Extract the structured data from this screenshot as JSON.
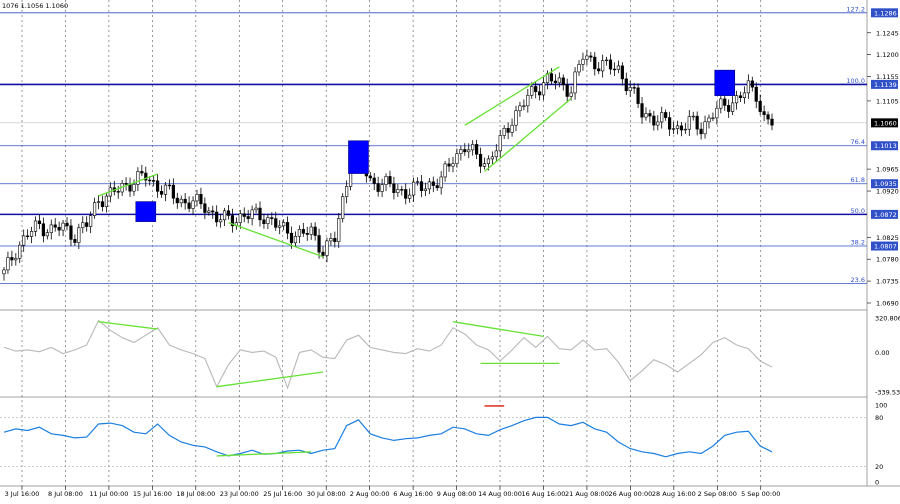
{
  "header": {
    "ohlc_readout": "1076 1.1056 1.1060"
  },
  "colors": {
    "level_line": "#1010a0",
    "fib_line": "#3050c8",
    "candle": "#000000",
    "trend": "#66e033",
    "cci": "#b8b8b8",
    "rsi": "#1a7ee0",
    "marker": "#0000ff",
    "divergence_mark": "#e03c2f"
  },
  "chart_data": [
    {
      "type": "candlestick",
      "name": "EURUSD price panel",
      "ylim": [
        1.069,
        1.13
      ],
      "y_ticks": [
        "1.1245",
        "1.1200",
        "1.1155",
        "1.1105",
        "1.0965",
        "1.0920",
        "1.0825",
        "1.0780",
        "1.0735",
        "1.0690"
      ],
      "current_price": "1.1060",
      "fib_levels": [
        {
          "pct": "127.2",
          "price": "1.1286",
          "value": 1.1286
        },
        {
          "pct": "100.0",
          "price": "1.1139",
          "value": 1.1139
        },
        {
          "pct": "76.4",
          "price": "1.1013",
          "value": 1.1013
        },
        {
          "pct": "61.8",
          "price": "1.0935",
          "value": 1.0935
        },
        {
          "pct": "50.0",
          "price": "1.0872",
          "value": 1.0872
        },
        {
          "pct": "38.2",
          "price": "1.0807",
          "value": 1.0807
        },
        {
          "pct": "23.6",
          "price": "",
          "value": 1.073
        }
      ],
      "x_labels": [
        "3 Jul 16:00",
        "8 Jul 08:00",
        "11 Jul 00:00",
        "15 Jul 16:00",
        "18 Jul 08:00",
        "23 Jul 00:00",
        "25 Jul 16:00",
        "30 Jul 08:00",
        "2 Aug 00:00",
        "6 Aug 16:00",
        "9 Aug 08:00",
        "14 Aug 00:00",
        "16 Aug 16:00",
        "21 Aug 08:00",
        "26 Aug 00:00",
        "28 Aug 16:00",
        "2 Sep 08:00",
        "5 Sep 00:00"
      ],
      "close_path": [
        [
          0,
          1.075
        ],
        [
          3,
          1.08
        ],
        [
          6,
          1.083
        ],
        [
          9,
          1.085
        ],
        [
          12,
          1.084
        ],
        [
          15,
          1.0845
        ],
        [
          18,
          1.083
        ],
        [
          21,
          1.085
        ],
        [
          24,
          1.0905
        ],
        [
          27,
          1.091
        ],
        [
          30,
          1.093
        ],
        [
          33,
          1.094
        ],
        [
          36,
          1.095
        ],
        [
          39,
          1.093
        ],
        [
          42,
          1.0915
        ],
        [
          45,
          1.09
        ],
        [
          48,
          1.0895
        ],
        [
          51,
          1.089
        ],
        [
          54,
          1.0865
        ],
        [
          57,
          1.086
        ],
        [
          60,
          1.0868
        ],
        [
          63,
          1.087
        ],
        [
          66,
          1.087
        ],
        [
          69,
          1.085
        ],
        [
          72,
          1.0835
        ],
        [
          75,
          1.083
        ],
        [
          78,
          1.0835
        ],
        [
          81,
          1.08
        ],
        [
          84,
          1.082
        ],
        [
          87,
          1.094
        ],
        [
          88,
          1.0995
        ],
        [
          89,
          1.1
        ],
        [
          91,
          1.097
        ],
        [
          93,
          1.094
        ],
        [
          96,
          1.0935
        ],
        [
          99,
          1.0925
        ],
        [
          102,
          1.0918
        ],
        [
          105,
          1.0925
        ],
        [
          108,
          1.0935
        ],
        [
          111,
          1.094
        ],
        [
          114,
          1.099
        ],
        [
          117,
          1.101
        ],
        [
          120,
          1.099
        ],
        [
          123,
          1.098
        ],
        [
          126,
          1.102
        ],
        [
          129,
          1.107
        ],
        [
          132,
          1.11
        ],
        [
          135,
          1.113
        ],
        [
          138,
          1.115
        ],
        [
          141,
          1.114
        ],
        [
          144,
          1.113
        ],
        [
          147,
          1.1195
        ],
        [
          150,
          1.1185
        ],
        [
          153,
          1.1175
        ],
        [
          156,
          1.117
        ],
        [
          159,
          1.113
        ],
        [
          162,
          1.108
        ],
        [
          165,
          1.107
        ],
        [
          168,
          1.106
        ],
        [
          171,
          1.105
        ],
        [
          174,
          1.106
        ],
        [
          177,
          1.105
        ],
        [
          180,
          1.108
        ],
        [
          183,
          1.1095
        ],
        [
          186,
          1.111
        ],
        [
          189,
          1.113
        ],
        [
          191,
          1.112
        ],
        [
          193,
          1.107
        ],
        [
          195,
          1.106
        ]
      ],
      "trend_lines": [
        {
          "from": [
            24,
            1.091
          ],
          "to": [
            39,
            1.0955
          ]
        },
        {
          "from": [
            57,
            1.0855
          ],
          "to": [
            81,
            1.0785
          ]
        },
        {
          "from": [
            117,
            1.1055
          ],
          "to": [
            141,
            1.1175
          ]
        },
        {
          "from": [
            122,
            1.096
          ],
          "to": [
            144,
            1.111
          ]
        }
      ],
      "markers": [
        {
          "x": 36,
          "y_low": 1.0872,
          "y_high": 1.089
        },
        {
          "x": 90,
          "y_low": 1.096,
          "y_high": 1.1015
        },
        {
          "x": 183,
          "y_low": 1.112,
          "y_high": 1.116
        }
      ]
    },
    {
      "type": "line",
      "name": "CCI",
      "ylim": [
        -339.532,
        320.8062
      ],
      "y_ticks": [
        "320.8062",
        "0.00",
        "-339.532"
      ],
      "values": [
        [
          0,
          40
        ],
        [
          3,
          10
        ],
        [
          6,
          20
        ],
        [
          9,
          5
        ],
        [
          12,
          40
        ],
        [
          15,
          -10
        ],
        [
          18,
          20
        ],
        [
          21,
          60
        ],
        [
          24,
          260
        ],
        [
          27,
          180
        ],
        [
          30,
          120
        ],
        [
          33,
          80
        ],
        [
          36,
          140
        ],
        [
          39,
          200
        ],
        [
          42,
          60
        ],
        [
          45,
          20
        ],
        [
          48,
          -10
        ],
        [
          51,
          -50
        ],
        [
          54,
          -280
        ],
        [
          57,
          -100
        ],
        [
          60,
          20
        ],
        [
          63,
          0
        ],
        [
          66,
          10
        ],
        [
          69,
          -40
        ],
        [
          72,
          -290
        ],
        [
          75,
          0
        ],
        [
          78,
          20
        ],
        [
          81,
          -40
        ],
        [
          84,
          -50
        ],
        [
          87,
          100
        ],
        [
          90,
          140
        ],
        [
          93,
          40
        ],
        [
          96,
          20
        ],
        [
          99,
          0
        ],
        [
          102,
          -10
        ],
        [
          105,
          30
        ],
        [
          108,
          10
        ],
        [
          111,
          60
        ],
        [
          114,
          200
        ],
        [
          117,
          150
        ],
        [
          120,
          60
        ],
        [
          123,
          20
        ],
        [
          126,
          -70
        ],
        [
          129,
          20
        ],
        [
          132,
          120
        ],
        [
          135,
          40
        ],
        [
          138,
          130
        ],
        [
          141,
          30
        ],
        [
          144,
          20
        ],
        [
          147,
          100
        ],
        [
          150,
          20
        ],
        [
          153,
          30
        ],
        [
          156,
          -80
        ],
        [
          159,
          -230
        ],
        [
          162,
          -150
        ],
        [
          165,
          -60
        ],
        [
          168,
          -100
        ],
        [
          171,
          -160
        ],
        [
          174,
          -90
        ],
        [
          177,
          -20
        ],
        [
          180,
          80
        ],
        [
          183,
          120
        ],
        [
          186,
          60
        ],
        [
          189,
          30
        ],
        [
          192,
          -70
        ],
        [
          195,
          -120
        ]
      ],
      "trend_lines": [
        {
          "from": [
            24,
            250
          ],
          "to": [
            39,
            190
          ]
        },
        {
          "from": [
            54,
            -280
          ],
          "to": [
            81,
            -160
          ]
        },
        {
          "from": [
            114,
            250
          ],
          "to": [
            137,
            130
          ]
        },
        {
          "from": [
            121,
            -90
          ],
          "to": [
            141,
            -90
          ]
        }
      ]
    },
    {
      "type": "line",
      "name": "RSI",
      "ylim": [
        0,
        100
      ],
      "y_ticks": [
        "100",
        "80",
        "20",
        "0"
      ],
      "values": [
        [
          0,
          62
        ],
        [
          3,
          66
        ],
        [
          6,
          64
        ],
        [
          9,
          68
        ],
        [
          12,
          60
        ],
        [
          15,
          58
        ],
        [
          18,
          55
        ],
        [
          21,
          56
        ],
        [
          24,
          72
        ],
        [
          27,
          73
        ],
        [
          30,
          70
        ],
        [
          33,
          62
        ],
        [
          36,
          60
        ],
        [
          39,
          72
        ],
        [
          42,
          58
        ],
        [
          45,
          50
        ],
        [
          48,
          46
        ],
        [
          51,
          44
        ],
        [
          54,
          38
        ],
        [
          57,
          33
        ],
        [
          60,
          36
        ],
        [
          63,
          40
        ],
        [
          66,
          35
        ],
        [
          69,
          36
        ],
        [
          72,
          39
        ],
        [
          75,
          40
        ],
        [
          78,
          36
        ],
        [
          81,
          40
        ],
        [
          84,
          42
        ],
        [
          87,
          70
        ],
        [
          90,
          77
        ],
        [
          93,
          60
        ],
        [
          96,
          55
        ],
        [
          99,
          52
        ],
        [
          102,
          54
        ],
        [
          105,
          55
        ],
        [
          108,
          58
        ],
        [
          111,
          60
        ],
        [
          114,
          68
        ],
        [
          117,
          66
        ],
        [
          120,
          60
        ],
        [
          123,
          58
        ],
        [
          126,
          65
        ],
        [
          129,
          70
        ],
        [
          132,
          76
        ],
        [
          135,
          80
        ],
        [
          138,
          80
        ],
        [
          141,
          72
        ],
        [
          144,
          70
        ],
        [
          147,
          74
        ],
        [
          150,
          66
        ],
        [
          153,
          62
        ],
        [
          156,
          50
        ],
        [
          159,
          42
        ],
        [
          162,
          38
        ],
        [
          165,
          36
        ],
        [
          168,
          32
        ],
        [
          171,
          36
        ],
        [
          174,
          38
        ],
        [
          177,
          36
        ],
        [
          180,
          45
        ],
        [
          183,
          58
        ],
        [
          186,
          62
        ],
        [
          189,
          63
        ],
        [
          192,
          45
        ],
        [
          195,
          38
        ]
      ],
      "trend_lines": [
        {
          "from": [
            54,
            33
          ],
          "to": [
            78,
            38
          ]
        }
      ],
      "divergence_mark": {
        "from": [
          122,
          94
        ],
        "to": [
          127,
          94
        ]
      }
    }
  ]
}
